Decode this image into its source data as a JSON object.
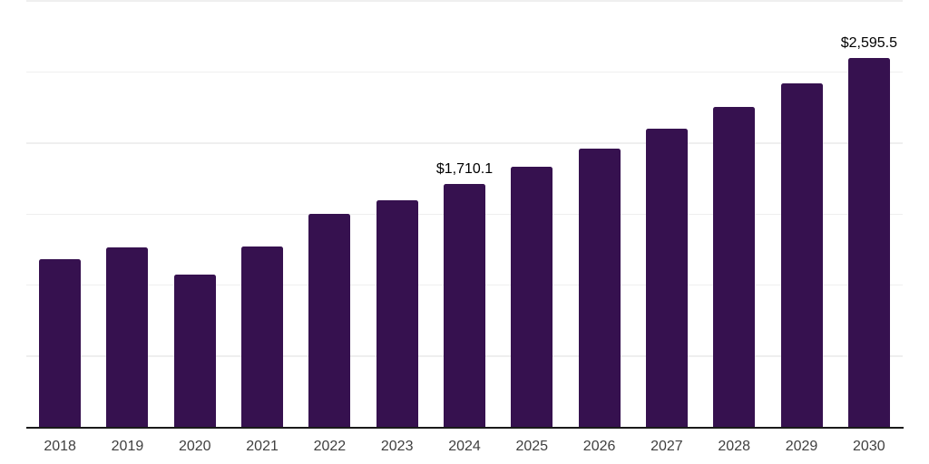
{
  "chart_data": {
    "type": "bar",
    "title": "",
    "xlabel": "",
    "ylabel": "",
    "categories": [
      "2018",
      "2019",
      "2020",
      "2021",
      "2022",
      "2023",
      "2024",
      "2025",
      "2026",
      "2027",
      "2028",
      "2029",
      "2030"
    ],
    "values": [
      1185,
      1265,
      1075,
      1275,
      1500,
      1600,
      1710.1,
      1835,
      1960,
      2100,
      2255,
      2420,
      2595.5
    ],
    "point_labels": {
      "2024": "$1,710.1",
      "2030": "$2,595.5"
    },
    "ylim": [
      0,
      3000
    ],
    "gridline_step": 500,
    "grid": "horizontal-only",
    "legend": "none",
    "y_tick_labels_visible": false,
    "bar_color": "#36114F",
    "gridline_color": "#efefef",
    "axis_line_color": "#1a1a1a",
    "tick_label_color": "#404040",
    "data_label_color": "#000000",
    "background_color": "#ffffff"
  }
}
